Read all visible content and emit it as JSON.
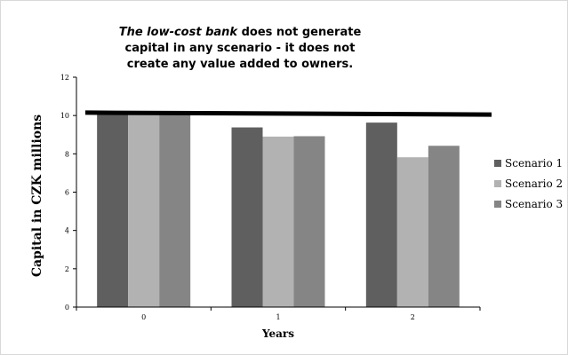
{
  "chart_data": {
    "type": "bar",
    "title_lines": [
      {
        "italic_part": "The low-cost bank",
        "rest": " does not generate"
      },
      {
        "italic_part": "",
        "rest": "capital in any scenario - it does not"
      },
      {
        "italic_part": "",
        "rest": "create any value added to owners."
      }
    ],
    "xlabel": "Years",
    "ylabel": "Capital in CZK millions",
    "categories": [
      "0",
      "1",
      "2"
    ],
    "ylim": [
      0,
      12
    ],
    "yticks": [
      0,
      2,
      4,
      6,
      8,
      10,
      12
    ],
    "series": [
      {
        "name": "Scenario 1",
        "color": "#5f5f5f",
        "values": [
          10.05,
          9.38,
          9.63
        ]
      },
      {
        "name": "Scenario 2",
        "color": "#b2b2b2",
        "values": [
          10.05,
          8.9,
          7.82
        ]
      },
      {
        "name": "Scenario 3",
        "color": "#858585",
        "values": [
          10.05,
          8.92,
          8.42
        ]
      }
    ],
    "reference_line": {
      "y_start": 10.15,
      "y_end": 10.05,
      "color": "#000000"
    },
    "legend_position": "right",
    "grid": false
  }
}
